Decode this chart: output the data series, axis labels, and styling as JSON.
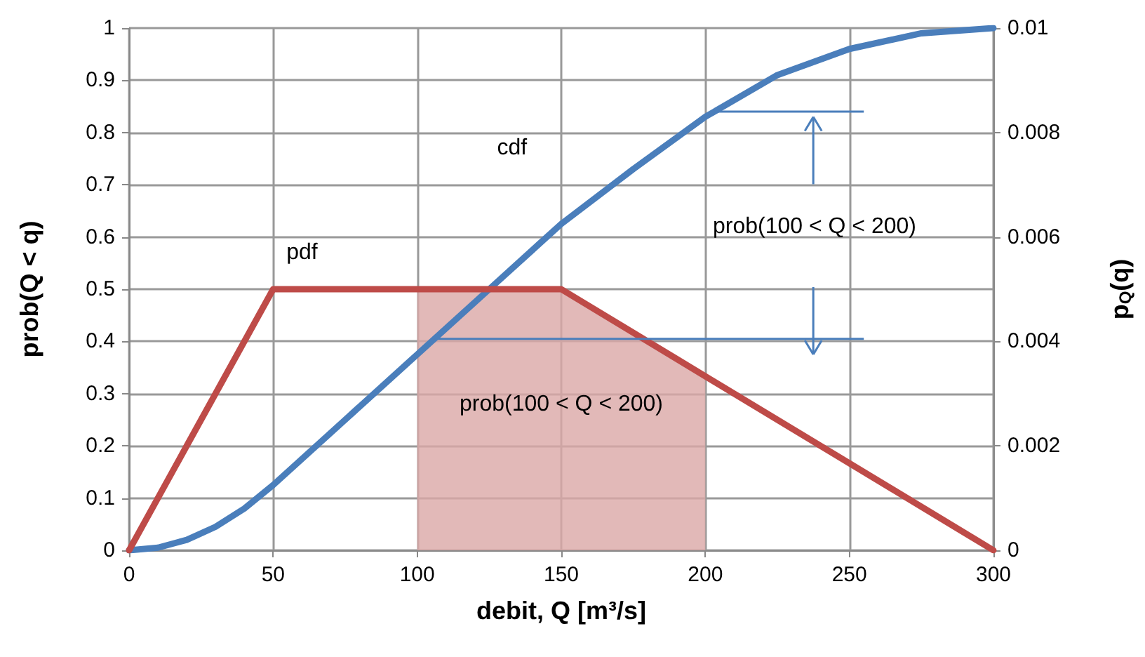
{
  "chart_data": {
    "type": "line",
    "xlabel": "debit, Q [m³/s]",
    "ylabel": "prob(Q < q)",
    "y2label": "p$_{Q}$(q)",
    "xlim": [
      0,
      300
    ],
    "xticks": [
      0,
      50,
      100,
      150,
      200,
      250,
      300
    ],
    "ylim": [
      0,
      1
    ],
    "yticks": [
      0,
      0.1,
      0.2,
      0.3,
      0.4,
      0.5,
      0.6,
      0.7,
      0.8,
      0.9,
      1
    ],
    "y2lim": [
      0,
      0.01
    ],
    "y2ticks": [
      0,
      0.002,
      0.004,
      0.006,
      0.008,
      0.01
    ],
    "grid": true,
    "marker": "none",
    "line_style": "solid",
    "series": [
      {
        "type": "area",
        "axis": "y2",
        "color": "#dba7a6",
        "x": [
          100,
          150,
          200
        ],
        "values": [
          0.005,
          0.005,
          0.0033
        ]
      },
      {
        "axis": "y",
        "color": "#4a7ebb",
        "x": [
          0,
          10,
          20,
          30,
          40,
          50,
          75,
          100,
          125,
          150,
          175,
          200,
          225,
          250,
          275,
          300
        ],
        "values": [
          0,
          0.005,
          0.02,
          0.045,
          0.08,
          0.125,
          0.25,
          0.375,
          0.5,
          0.625,
          0.73,
          0.83,
          0.91,
          0.96,
          0.99,
          1
        ]
      },
      {
        "axis": "y2",
        "color": "#be4b48",
        "x": [
          0,
          50,
          150,
          300
        ],
        "values": [
          0,
          0.005,
          0.005,
          0
        ]
      }
    ],
    "ref_lines": [
      {
        "axis": "y",
        "value": 0.84,
        "color": "#4a7ebb"
      },
      {
        "axis": "y",
        "value": 0.405,
        "color": "#4a7ebb"
      }
    ],
    "annotations": [
      "pdf",
      "cdf",
      "prob(100 < Q < 200)",
      "prob(100 < Q < 200)"
    ]
  }
}
